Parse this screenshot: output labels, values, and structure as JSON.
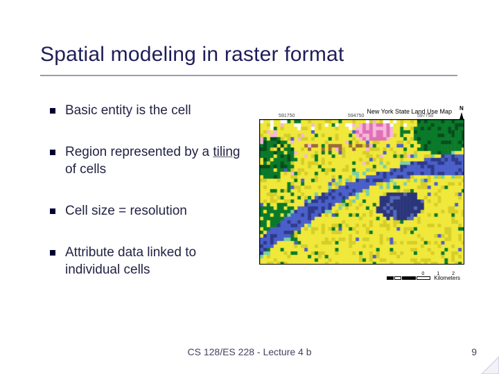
{
  "title": "Spatial modeling in raster format",
  "title_color": "#1e1e5a",
  "title_fontsize": 30,
  "underline_color": "#9999b2",
  "bullets": [
    {
      "pre": "Basic entity is the cell",
      "underlined": "",
      "post": ""
    },
    {
      "pre": "Region represented by a ",
      "underlined": "tiling",
      "post": " of cells"
    },
    {
      "pre": "Cell size = resolution",
      "underlined": "",
      "post": ""
    },
    {
      "pre": "Attribute data linked to individual cells",
      "underlined": "",
      "post": ""
    }
  ],
  "bullet_fontsize": 19,
  "bullet_color": "#222244",
  "bullet_marker_color": "#000033",
  "map": {
    "title": "New York State Land Use Map",
    "north_label": "N",
    "xaxis_labels": [
      "591750",
      "594750",
      "597750"
    ],
    "scalebar": {
      "segments": [
        {
          "w": 10,
          "fill": "black"
        },
        {
          "w": 10,
          "fill": "white"
        },
        {
          "w": 20,
          "fill": "black"
        },
        {
          "w": 20,
          "fill": "white"
        }
      ],
      "ticks": "0  1  2",
      "unit": "Kilometers"
    },
    "raster": {
      "type": "raster-land-use",
      "width_cells": 60,
      "height_cells": 42,
      "palette": {
        "water": "#4a5fc9",
        "water_dark": "#2e3a8a",
        "forest": "#0a7a2a",
        "forest_dark": "#064d1c",
        "ag": "#f0e83a",
        "ag_dark": "#d6ce28",
        "urban": "#2a357a",
        "urban_light": "#5667b8",
        "barren": "#f4b8da",
        "barren_dark": "#e070b5",
        "wetland": "#7acfa6",
        "brown": "#9b6a3a",
        "white": "#ffffff",
        "outline": "#000000"
      },
      "background": "#f0e83a"
    }
  },
  "footer": "CS 128/ES 228 - Lecture 4 b",
  "page_number": "9",
  "footer_color": "#444460",
  "corner_notch_color": "#d6d6e4",
  "slide_background": "#ffffff"
}
